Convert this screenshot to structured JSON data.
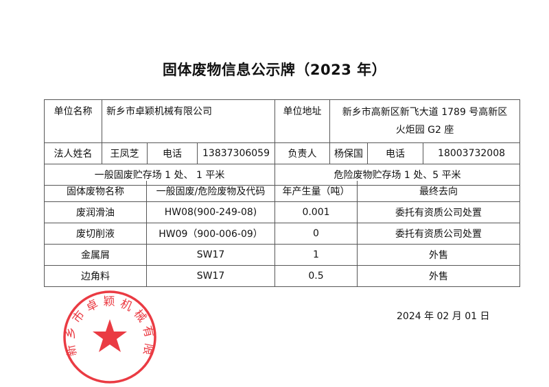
{
  "title": "固体废物信息公示牌（2023 年）",
  "info": {
    "company_label": "单位名称",
    "company_value": "新乡市卓颖机械有限公司",
    "address_label": "单位地址",
    "address_line1": "新乡市高新区新飞大道 1789 号高新区",
    "address_line2": "火炬园 G2 座",
    "legal_label": "法人姓名",
    "legal_value": "王凤芝",
    "phone_label_1": "电话",
    "phone_value_1": "13837306059",
    "manager_label": "负责人",
    "manager_value": "杨保国",
    "phone_label_2": "电话",
    "phone_value_2": "18003732008",
    "general_storage": "一般固废贮存场 1 处、 1 平米",
    "hazard_storage": "危险废物贮存场 1 处、5 平米"
  },
  "waste_table": {
    "headers": [
      "固体废物名称",
      "一般固废/危险废物及代码",
      "年产生量（吨）",
      "最终去向"
    ],
    "rows": [
      [
        "废润滑油",
        "HW08(900-249-08)",
        "0.001",
        "委托有资质公司处置"
      ],
      [
        "废切削液",
        "HW09（900-006-09）",
        "0",
        "委托有资质公司处置"
      ],
      [
        "金属屑",
        "SW17",
        "1",
        "外售"
      ],
      [
        "边角料",
        "SW17",
        "0.5",
        "外售"
      ]
    ]
  },
  "date": "2024 年  02  月  01  日",
  "stamp": {
    "text": "新乡市卓颖机械有限公司",
    "color": "#e8202a"
  }
}
